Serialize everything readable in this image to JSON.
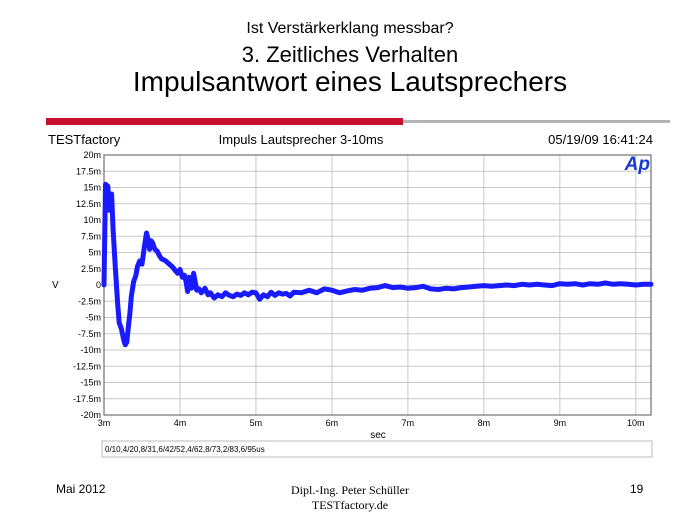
{
  "slide": {
    "title_line1": "Ist Verstärkerklang messbar?",
    "title_line2": "3. Zeitliches Verhalten",
    "title_line3": "Impulsantwort eines Lautsprechers"
  },
  "footer": {
    "date": "Mai 2012",
    "author_line1": "Dipl.-Ing. Peter Schüller",
    "author_line2": "TESTfactory.de",
    "page": "19"
  },
  "chart_header": {
    "left": "TESTfactory",
    "center": "Impuls Lautsprecher 3-10ms",
    "right": "05/19/09 16:41:24",
    "logo": "Ap"
  },
  "legend_text": "0/10,4/20,8/31,6/42/52,4/62,8/73,2/83,6/95us",
  "colors": {
    "trace": "#1a1aff",
    "accent_red": "#c8102e",
    "logo": "#1a3ccc"
  },
  "chart_data": {
    "type": "line",
    "xlabel": "sec",
    "ylabel": "V",
    "xlim": [
      0.003,
      0.0102
    ],
    "ylim": [
      -0.02,
      0.02
    ],
    "grid": true,
    "x_ticks": [
      0.003,
      0.004,
      0.005,
      0.006,
      0.007,
      0.008,
      0.009,
      0.01
    ],
    "x_tick_labels": [
      "3m",
      "4m",
      "5m",
      "6m",
      "7m",
      "8m",
      "9m",
      "10m"
    ],
    "y_ticks": [
      0.02,
      0.0175,
      0.015,
      0.0125,
      0.01,
      0.0075,
      0.005,
      0.0025,
      0,
      -0.0025,
      -0.005,
      -0.0075,
      -0.01,
      -0.0125,
      -0.015,
      -0.0175,
      -0.02
    ],
    "y_tick_labels": [
      "20m",
      "17.5m",
      "15m",
      "12.5m",
      "10m",
      "7.5m",
      "5m",
      "2.5m",
      "0",
      "-2.5m",
      "-5m",
      "-7.5m",
      "-10m",
      "-12.5m",
      "-15m",
      "-17.5m",
      "-20m"
    ],
    "series": [
      {
        "x": [
          0.003,
          0.00302,
          0.00305,
          0.00307,
          0.0031,
          0.00312,
          0.00315,
          0.00318,
          0.0032,
          0.00323,
          0.00326,
          0.00328,
          0.0033,
          0.00332,
          0.00334,
          0.00336,
          0.00339,
          0.00342,
          0.00344,
          0.00347,
          0.0035,
          0.00353,
          0.00356,
          0.00358,
          0.0036,
          0.00362,
          0.00364,
          0.00367,
          0.0037,
          0.00373,
          0.00376,
          0.0038,
          0.00383,
          0.00386,
          0.0039,
          0.00394,
          0.00397,
          0.004,
          0.00403,
          0.00406,
          0.00408,
          0.0041,
          0.00412,
          0.00415,
          0.00418,
          0.0042,
          0.00422,
          0.00425,
          0.00428,
          0.0043,
          0.00433,
          0.00437,
          0.0044,
          0.00445,
          0.0045,
          0.00455,
          0.0046,
          0.00465,
          0.0047,
          0.00475,
          0.0048,
          0.00485,
          0.0049,
          0.00495,
          0.005,
          0.00505,
          0.0051,
          0.00515,
          0.0052,
          0.00525,
          0.0053,
          0.00535,
          0.0054,
          0.00545,
          0.0055,
          0.0056,
          0.0057,
          0.0058,
          0.0059,
          0.006,
          0.0061,
          0.0062,
          0.0063,
          0.0064,
          0.0065,
          0.0066,
          0.0067,
          0.0068,
          0.0069,
          0.007,
          0.0071,
          0.0072,
          0.0073,
          0.0074,
          0.0075,
          0.0076,
          0.0077,
          0.0078,
          0.0079,
          0.008,
          0.0081,
          0.0082,
          0.0083,
          0.0084,
          0.0085,
          0.0086,
          0.0087,
          0.0088,
          0.0089,
          0.009,
          0.0091,
          0.0092,
          0.0093,
          0.0094,
          0.0095,
          0.0096,
          0.0097,
          0.0098,
          0.0099,
          0.01,
          0.0101,
          0.0102
        ],
        "y": [
          0.0,
          0.0155,
          0.0152,
          0.0115,
          0.014,
          0.0085,
          0.0025,
          -0.003,
          -0.0058,
          -0.0068,
          -0.0085,
          -0.0092,
          -0.0088,
          -0.0065,
          -0.0045,
          -0.0018,
          0.0005,
          0.0015,
          0.0028,
          0.0037,
          0.0032,
          0.0058,
          0.008,
          0.007,
          0.0055,
          0.0068,
          0.0065,
          0.0055,
          0.0052,
          0.0045,
          0.004,
          0.0038,
          0.0035,
          0.0032,
          0.0028,
          0.0022,
          0.0018,
          0.0024,
          0.0012,
          0.0015,
          0.0005,
          -0.001,
          0.0012,
          -0.0005,
          0.0018,
          0.0005,
          -0.0008,
          -0.0006,
          -0.0012,
          -0.0009,
          -0.0005,
          -0.0015,
          -0.0012,
          -0.002,
          -0.0015,
          -0.0018,
          -0.0012,
          -0.0016,
          -0.0018,
          -0.0014,
          -0.0016,
          -0.0012,
          -0.0015,
          -0.0011,
          -0.0012,
          -0.0022,
          -0.0015,
          -0.0018,
          -0.0011,
          -0.0016,
          -0.0012,
          -0.0014,
          -0.0013,
          -0.0017,
          -0.0011,
          -0.0012,
          -0.0008,
          -0.0012,
          -0.0006,
          -0.0008,
          -0.0012,
          -0.0009,
          -0.0007,
          -0.0008,
          -0.0005,
          -0.0004,
          -0.0001,
          -0.0004,
          -0.0003,
          -0.0005,
          -0.0004,
          -0.0002,
          -0.0006,
          -0.0007,
          -0.0005,
          -0.0006,
          -0.0004,
          -0.0003,
          -0.0002,
          -0.0001,
          -0.0002,
          -0.0001,
          0.0,
          -0.0001,
          0.0001,
          0.0,
          0.0001,
          0.0,
          -0.0001,
          0.0002,
          0.0001,
          0.0002,
          0.0,
          0.0002,
          0.0001,
          0.0003,
          0.0001,
          0.0002,
          0.0001,
          0.0,
          0.0001,
          0.0001
        ]
      }
    ]
  }
}
